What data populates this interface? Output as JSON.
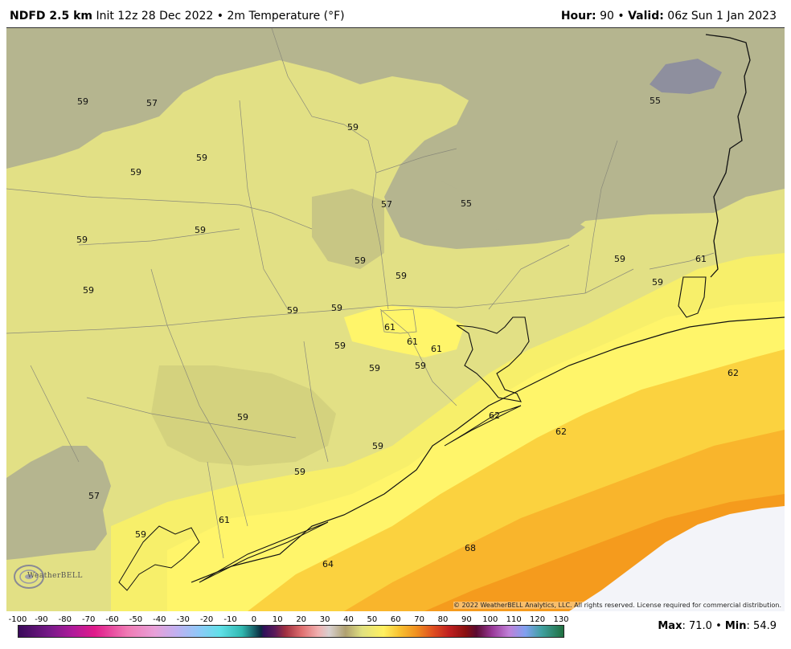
{
  "header": {
    "model": "NDFD 2.5 km",
    "init": "Init 12z 28 Dec 2022",
    "sep": "•",
    "param": "2m Temperature (°F)",
    "hour_label": "Hour:",
    "hour_value": "90",
    "valid_label": "Valid:",
    "valid_value": "06z Sun 1 Jan 2023"
  },
  "map": {
    "labels": [
      {
        "text": "59"
      },
      {
        "text": "57"
      },
      {
        "text": "59"
      },
      {
        "text": "59"
      },
      {
        "text": "59"
      },
      {
        "text": "59"
      },
      {
        "text": "59"
      },
      {
        "text": "59"
      },
      {
        "text": "57"
      },
      {
        "text": "55"
      },
      {
        "text": "55"
      },
      {
        "text": "59"
      },
      {
        "text": "59"
      },
      {
        "text": "59"
      },
      {
        "text": "59"
      },
      {
        "text": "59"
      },
      {
        "text": "61"
      },
      {
        "text": "59"
      },
      {
        "text": "61"
      },
      {
        "text": "61"
      },
      {
        "text": "59"
      },
      {
        "text": "59"
      },
      {
        "text": "59"
      },
      {
        "text": "61"
      },
      {
        "text": "62"
      },
      {
        "text": "62"
      },
      {
        "text": "62"
      },
      {
        "text": "59"
      },
      {
        "text": "59"
      },
      {
        "text": "57"
      },
      {
        "text": "59"
      },
      {
        "text": "61"
      },
      {
        "text": "68"
      },
      {
        "text": "64"
      }
    ],
    "copyright": "© 2022 WeatherBELL Analytics, LLC. All rights reserved. License required for commercial distribution.",
    "logo_text": "WeatherBELL"
  },
  "legend": {
    "ticks": [
      "-100",
      "-90",
      "-80",
      "-70",
      "-60",
      "-50",
      "-40",
      "-30",
      "-20",
      "-10",
      "0",
      "10",
      "20",
      "30",
      "40",
      "50",
      "60",
      "70",
      "80",
      "90",
      "100",
      "110",
      "120",
      "130"
    ],
    "max_label": "Max",
    "max_value": "71.0",
    "min_label": "Min",
    "min_value": "54.9"
  },
  "colors": {
    "gray": "#b5b58f",
    "light_yellow": "#e2e085",
    "yellow": "#f7ef6a",
    "bright_yellow": "#fff56a",
    "gold": "#fbd23f",
    "orange": "#f9b52c",
    "dark_orange": "#f59b1d",
    "missing": "#f3f4f9"
  }
}
